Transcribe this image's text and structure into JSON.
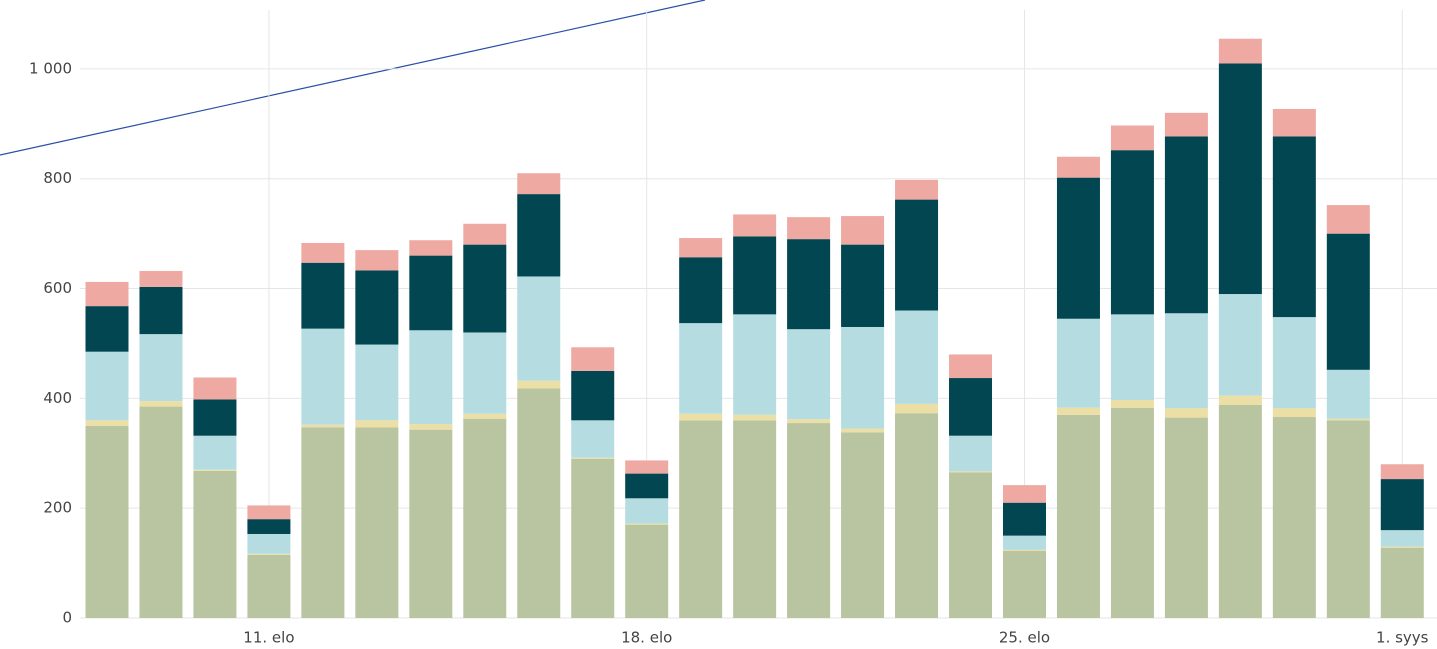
{
  "chart_data": {
    "type": "stacked_bar",
    "categories": [
      null,
      null,
      null,
      "11. elo",
      null,
      null,
      null,
      null,
      null,
      null,
      "18. elo",
      null,
      null,
      null,
      null,
      null,
      null,
      "25. elo",
      null,
      null,
      null,
      null,
      null,
      null,
      "1. syys"
    ],
    "series": [
      {
        "color": "#b9c4a1",
        "values": [
          350,
          385,
          268,
          115,
          347,
          347,
          343,
          363,
          418,
          290,
          170,
          360,
          360,
          355,
          338,
          373,
          265,
          122,
          370,
          383,
          365,
          388,
          366,
          360,
          128
        ]
      },
      {
        "color": "#ecdfa5",
        "values": [
          10,
          10,
          2,
          2,
          5,
          13,
          10,
          9,
          14,
          2,
          2,
          12,
          10,
          7,
          7,
          17,
          2,
          2,
          13,
          14,
          17,
          17,
          16,
          3,
          2
        ]
      },
      {
        "color": "#b5dde1",
        "values": [
          125,
          122,
          62,
          36,
          175,
          138,
          171,
          148,
          190,
          68,
          46,
          165,
          183,
          164,
          185,
          170,
          65,
          26,
          162,
          156,
          173,
          185,
          166,
          89,
          30
        ]
      },
      {
        "color": "#014650",
        "values": [
          83,
          86,
          66,
          27,
          120,
          135,
          136,
          160,
          150,
          90,
          45,
          120,
          142,
          164,
          150,
          202,
          105,
          60,
          257,
          299,
          322,
          420,
          329,
          248,
          93
        ]
      },
      {
        "color": "#eea9a3",
        "values": [
          44,
          29,
          40,
          25,
          36,
          37,
          28,
          38,
          38,
          43,
          24,
          35,
          40,
          40,
          52,
          36,
          43,
          32,
          38,
          45,
          43,
          45,
          50,
          52,
          27
        ]
      }
    ],
    "ylim": [
      0,
      1100
    ],
    "yticks": [
      0,
      200,
      400,
      600,
      800,
      {
        "value": 1000,
        "label": "1 000"
      }
    ],
    "grid": true
  }
}
